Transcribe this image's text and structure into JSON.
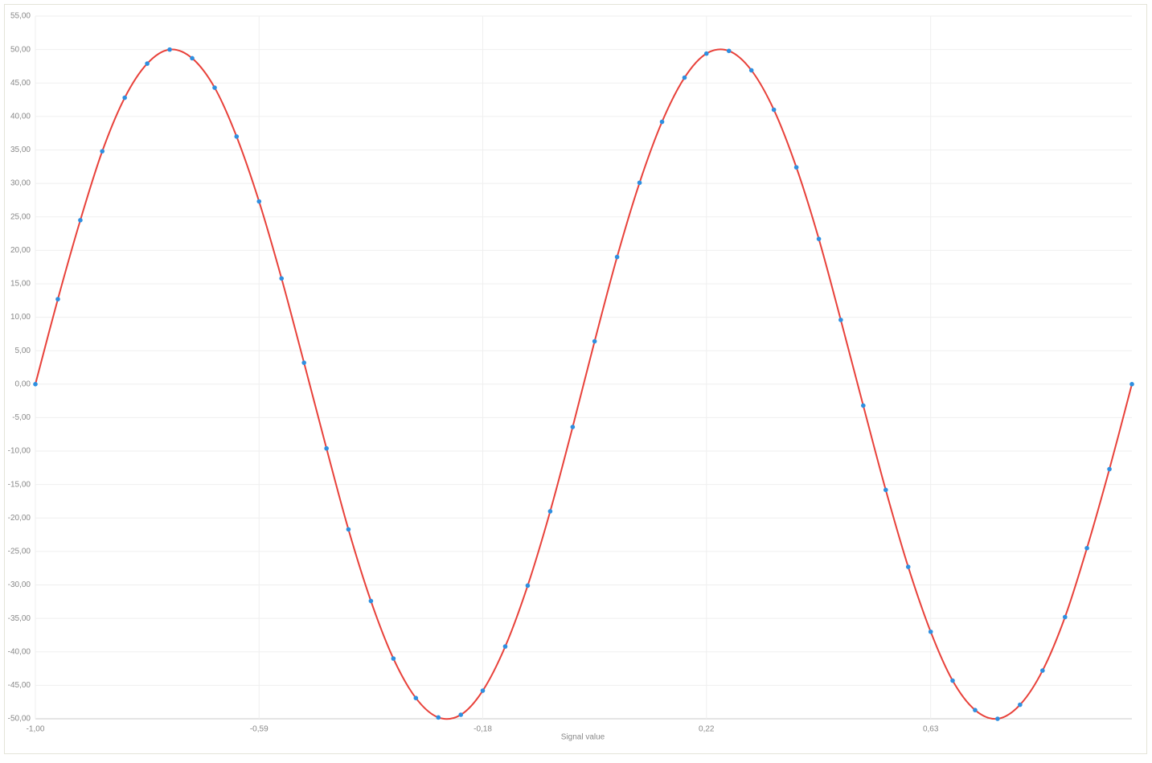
{
  "chart_data": {
    "type": "scatter",
    "x_label": "Signal value",
    "x": [
      -1,
      -0.959,
      -0.918,
      -0.878,
      -0.837,
      -0.796,
      -0.755,
      -0.714,
      -0.673,
      -0.633,
      -0.592,
      -0.551,
      -0.51,
      -0.469,
      -0.429,
      -0.388,
      -0.347,
      -0.306,
      -0.265,
      -0.224,
      -0.184,
      -0.143,
      -0.102,
      -0.061,
      -0.02,
      0.02,
      0.061,
      0.102,
      0.143,
      0.184,
      0.224,
      0.265,
      0.306,
      0.347,
      0.388,
      0.429,
      0.469,
      0.51,
      0.551,
      0.592,
      0.633,
      0.673,
      0.714,
      0.755,
      0.796,
      0.837,
      0.878,
      0.918,
      0.959,
      1
    ],
    "series": [
      {
        "type": "line",
        "color": "#e8413a",
        "values": [
          0,
          12.7,
          24.5,
          34.8,
          42.8,
          47.9,
          50.0,
          48.7,
          44.3,
          37.0,
          27.3,
          15.8,
          3.2,
          -9.6,
          -21.7,
          -32.4,
          -41.0,
          -46.9,
          -49.8,
          -49.4,
          -45.8,
          -39.2,
          -30.1,
          -19.0,
          -6.4,
          6.4,
          19.0,
          30.1,
          39.2,
          45.8,
          49.4,
          49.8,
          46.9,
          41.0,
          32.4,
          21.7,
          9.6,
          -3.2,
          -15.8,
          -27.3,
          -37.0,
          -44.3,
          -48.7,
          -50.0,
          -47.9,
          -42.8,
          -34.8,
          -24.5,
          -12.7,
          0
        ]
      },
      {
        "type": "scatter",
        "color": "#2e8fe0",
        "values": [
          0,
          12.7,
          24.5,
          34.8,
          42.8,
          47.9,
          50.0,
          48.7,
          44.3,
          37.0,
          27.3,
          15.8,
          3.2,
          -9.6,
          -21.7,
          -32.4,
          -41.0,
          -46.9,
          -49.8,
          -49.4,
          -45.8,
          -39.2,
          -30.1,
          -19.0,
          -6.4,
          6.4,
          19.0,
          30.1,
          39.2,
          45.8,
          49.4,
          49.8,
          46.9,
          41.0,
          32.4,
          21.7,
          9.6,
          -3.2,
          -15.8,
          -27.3,
          -37.0,
          -44.3,
          -48.7,
          -50.0,
          -47.9,
          -42.8,
          -34.8,
          -24.5,
          -12.7,
          0
        ]
      }
    ],
    "xlim": [
      -1,
      1
    ],
    "xticks": [
      {
        "value": -1,
        "label": "-1,00"
      },
      {
        "value": -0.592,
        "label": "-0,59"
      },
      {
        "value": -0.184,
        "label": "-0,18"
      },
      {
        "value": 0.224,
        "label": "0,22"
      },
      {
        "value": 0.633,
        "label": "0,63"
      }
    ],
    "ylim": [
      -50,
      55
    ],
    "yticks": [
      {
        "value": -50,
        "label": "-50,00"
      },
      {
        "value": -45,
        "label": "-45,00"
      },
      {
        "value": -40,
        "label": "-40,00"
      },
      {
        "value": -35,
        "label": "-35,00"
      },
      {
        "value": -30,
        "label": "-30,00"
      },
      {
        "value": -25,
        "label": "-25,00"
      },
      {
        "value": -20,
        "label": "-20,00"
      },
      {
        "value": -15,
        "label": "-15,00"
      },
      {
        "value": -10,
        "label": "-10,00"
      },
      {
        "value": -5,
        "label": "-5,00"
      },
      {
        "value": 0,
        "label": "0,00"
      },
      {
        "value": 5,
        "label": "5,00"
      },
      {
        "value": 10,
        "label": "10,00"
      },
      {
        "value": 15,
        "label": "15,00"
      },
      {
        "value": 20,
        "label": "20,00"
      },
      {
        "value": 25,
        "label": "25,00"
      },
      {
        "value": 30,
        "label": "30,00"
      },
      {
        "value": 35,
        "label": "35,00"
      },
      {
        "value": 40,
        "label": "40,00"
      },
      {
        "value": 45,
        "label": "45,00"
      },
      {
        "value": 50,
        "label": "50,00"
      },
      {
        "value": 55,
        "label": "55,00"
      }
    ],
    "grid": true
  }
}
